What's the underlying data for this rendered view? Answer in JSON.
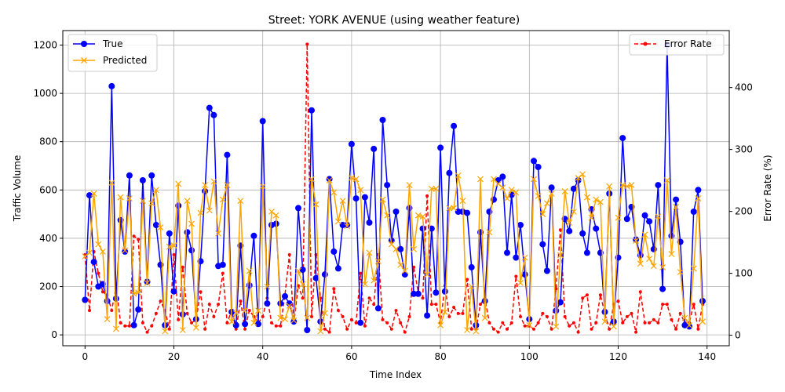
{
  "chart_data": {
    "type": "line",
    "title": "Street: YORK AVENUE (using weather feature)",
    "xlabel": "Time Index",
    "ylabel": "Traffic Volume",
    "y2label": "Error Rate (%)",
    "xlim": [
      -5,
      145
    ],
    "ylim": [
      -45,
      1260
    ],
    "y2lim": [
      -17,
      492
    ],
    "xticks": [
      0,
      20,
      40,
      60,
      80,
      100,
      120,
      140
    ],
    "yticks": [
      0,
      200,
      400,
      600,
      800,
      1000,
      1200
    ],
    "y2ticks": [
      0,
      100,
      200,
      300,
      400
    ],
    "grid": true,
    "legend_left": "upper-left",
    "legend_right": "upper-right",
    "colors": {
      "true": "#0000ff",
      "predicted": "#ffa500",
      "error": "#ff0000"
    },
    "series": [
      {
        "name": "True",
        "values": [
          145,
          578,
          302,
          200,
          210,
          140,
          1030,
          150,
          475,
          345,
          660,
          40,
          105,
          640,
          220,
          660,
          455,
          290,
          40,
          420,
          180,
          535,
          85,
          425,
          350,
          65,
          305,
          595,
          940,
          910,
          285,
          290,
          745,
          95,
          40,
          370,
          45,
          205,
          410,
          45,
          885,
          130,
          455,
          460,
          130,
          160,
          130,
          55,
          525,
          270,
          20,
          930,
          235,
          55,
          250,
          645,
          345,
          275,
          455,
          455,
          790,
          565,
          50,
          570,
          465,
          770,
          110,
          890,
          620,
          390,
          510,
          355,
          250,
          525,
          170,
          170,
          440,
          80,
          440,
          175,
          775,
          180,
          670,
          865,
          510,
          510,
          505,
          280,
          40,
          425,
          140,
          510,
          560,
          640,
          655,
          340,
          580,
          320,
          455,
          250,
          65,
          720,
          695,
          375,
          265,
          610,
          100,
          135,
          480,
          430,
          605,
          640,
          420,
          340,
          520,
          440,
          340,
          95,
          585,
          55,
          320,
          815,
          480,
          530,
          395,
          330,
          495,
          470,
          355,
          620,
          190,
          1200,
          410,
          560,
          385,
          40,
          35,
          510,
          600,
          140
        ]
      },
      {
        "name": "Predicted",
        "values": [
          325,
          340,
          585,
          375,
          345,
          65,
          630,
          25,
          570,
          350,
          565,
          170,
          175,
          555,
          215,
          545,
          600,
          445,
          15,
          365,
          370,
          625,
          20,
          555,
          460,
          30,
          505,
          620,
          515,
          635,
          420,
          560,
          620,
          55,
          90,
          555,
          100,
          265,
          50,
          100,
          615,
          200,
          510,
          495,
          70,
          65,
          120,
          60,
          265,
          210,
          70,
          645,
          540,
          15,
          90,
          640,
          590,
          470,
          555,
          450,
          650,
          645,
          600,
          210,
          340,
          225,
          305,
          560,
          495,
          375,
          355,
          290,
          265,
          620,
          355,
          495,
          490,
          250,
          605,
          605,
          40,
          95,
          525,
          525,
          660,
          555,
          20,
          200,
          15,
          645,
          70,
          425,
          645,
          625,
          610,
          565,
          600,
          590,
          215,
          320,
          40,
          645,
          575,
          500,
          545,
          585,
          35,
          330,
          595,
          465,
          510,
          650,
          665,
          570,
          485,
          560,
          550,
          55,
          615,
          35,
          485,
          620,
          615,
          620,
          390,
          295,
          415,
          315,
          285,
          490,
          280,
          640,
          335,
          530,
          260,
          70,
          40,
          275,
          565,
          55
        ]
      },
      {
        "name": "Error Rate",
        "axis": "secondary",
        "values": [
          130,
          40,
          135,
          100,
          70,
          65,
          40,
          80,
          20,
          15,
          15,
          160,
          155,
          20,
          5,
          15,
          35,
          55,
          40,
          10,
          130,
          25,
          110,
          35,
          20,
          25,
          70,
          10,
          50,
          30,
          50,
          100,
          20,
          40,
          10,
          55,
          10,
          40,
          30,
          20,
          30,
          60,
          20,
          15,
          15,
          65,
          130,
          20,
          80,
          60,
          470,
          30,
          130,
          60,
          10,
          5,
          75,
          40,
          30,
          10,
          25,
          20,
          100,
          15,
          60,
          50,
          130,
          25,
          20,
          10,
          40,
          20,
          5,
          30,
          110,
          70,
          60,
          225,
          50,
          50,
          20,
          80,
          30,
          45,
          35,
          35,
          90,
          10,
          10,
          50,
          60,
          20,
          10,
          5,
          20,
          10,
          20,
          95,
          30,
          15,
          15,
          10,
          20,
          35,
          30,
          10,
          75,
          170,
          30,
          15,
          20,
          5,
          60,
          65,
          10,
          20,
          65,
          35,
          10,
          50,
          55,
          20,
          30,
          35,
          5,
          70,
          20,
          20,
          25,
          20,
          50,
          50,
          25,
          10,
          35,
          20,
          20,
          50,
          10,
          50
        ]
      }
    ]
  }
}
